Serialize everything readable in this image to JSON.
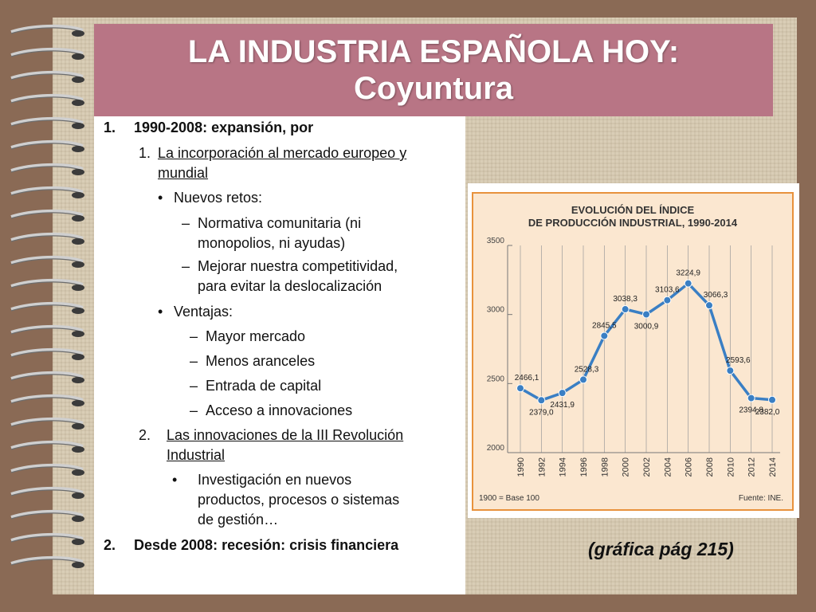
{
  "title": {
    "line1": "LA INDUSTRIA ESPAÑOLA HOY:",
    "line2": "Coyuntura"
  },
  "outline": {
    "item1": {
      "num": "1.",
      "text": "1990-2008: expansión, por"
    },
    "item1_1": {
      "num": "1.",
      "line1": "La incorporación al mercado europeo y",
      "line2": "mundial"
    },
    "nuevos_retos": {
      "bullet": "•",
      "text": "Nuevos retos:"
    },
    "normativa": {
      "dash": "–",
      "line1": "Normativa comunitaria (ni",
      "line2": "monopolios, ni ayudas)"
    },
    "mejorar": {
      "dash": "–",
      "line1": "Mejorar nuestra competitividad,",
      "line2": "para evitar la deslocalización"
    },
    "ventajas": {
      "bullet": "•",
      "text": "Ventajas:"
    },
    "mayor": {
      "dash": "–",
      "text": "Mayor mercado"
    },
    "menos": {
      "dash": "–",
      "text": "Menos aranceles"
    },
    "entrada": {
      "dash": "–",
      "text": "Entrada de capital"
    },
    "acceso": {
      "dash": "–",
      "text": "Acceso a innovaciones"
    },
    "item1_2": {
      "num": "2.",
      "line1": "Las innovaciones de la III Revolución",
      "line2": "Industrial"
    },
    "investigacion": {
      "bullet": "•",
      "line1": "Investigación en nuevos",
      "line2": "productos, procesos o sistemas",
      "line3": "de gestión…"
    },
    "item2": {
      "num": "2.",
      "text": "Desde 2008: recesión: crisis financiera"
    }
  },
  "caption": "(gráfica pág 215)",
  "chart_data": {
    "type": "line",
    "title_line1": "EVOLUCIÓN DEL ÍNDICE",
    "title_line2": "DE PRODUCCIÓN INDUSTRIAL, 1990-2014",
    "x": [
      1990,
      1992,
      1994,
      1996,
      1998,
      2000,
      2002,
      2004,
      2006,
      2008,
      2010,
      2012,
      2014
    ],
    "x_labels": [
      "1990",
      "1992",
      "1994",
      "1996",
      "1998",
      "2000",
      "2002",
      "2004",
      "2006",
      "2008",
      "2010",
      "2012",
      "2014"
    ],
    "values": [
      2466.1,
      2379.0,
      2431.9,
      2528.3,
      2845.5,
      3038.3,
      3000.9,
      3103.6,
      3224.9,
      3066.3,
      2593.6,
      2394.8,
      2382.0
    ],
    "value_labels": [
      "2466,1",
      "2379,0",
      "2431,9",
      "2528,3",
      "2845,5",
      "3038,3",
      "3000,9",
      "3103,6",
      "3224,9",
      "3066,3",
      "2593,6",
      "2394,8",
      "2382,0"
    ],
    "yticks": [
      2000,
      2500,
      3000,
      3500
    ],
    "ylim": [
      2000,
      3500
    ],
    "grid": "vertical",
    "note": "1900 = Base 100",
    "source": "Fuente: INE.",
    "colors": {
      "line": "#3a7fc4",
      "point": "#3a7fc4",
      "background": "#fbe7d0",
      "border": "#e8923c"
    }
  }
}
